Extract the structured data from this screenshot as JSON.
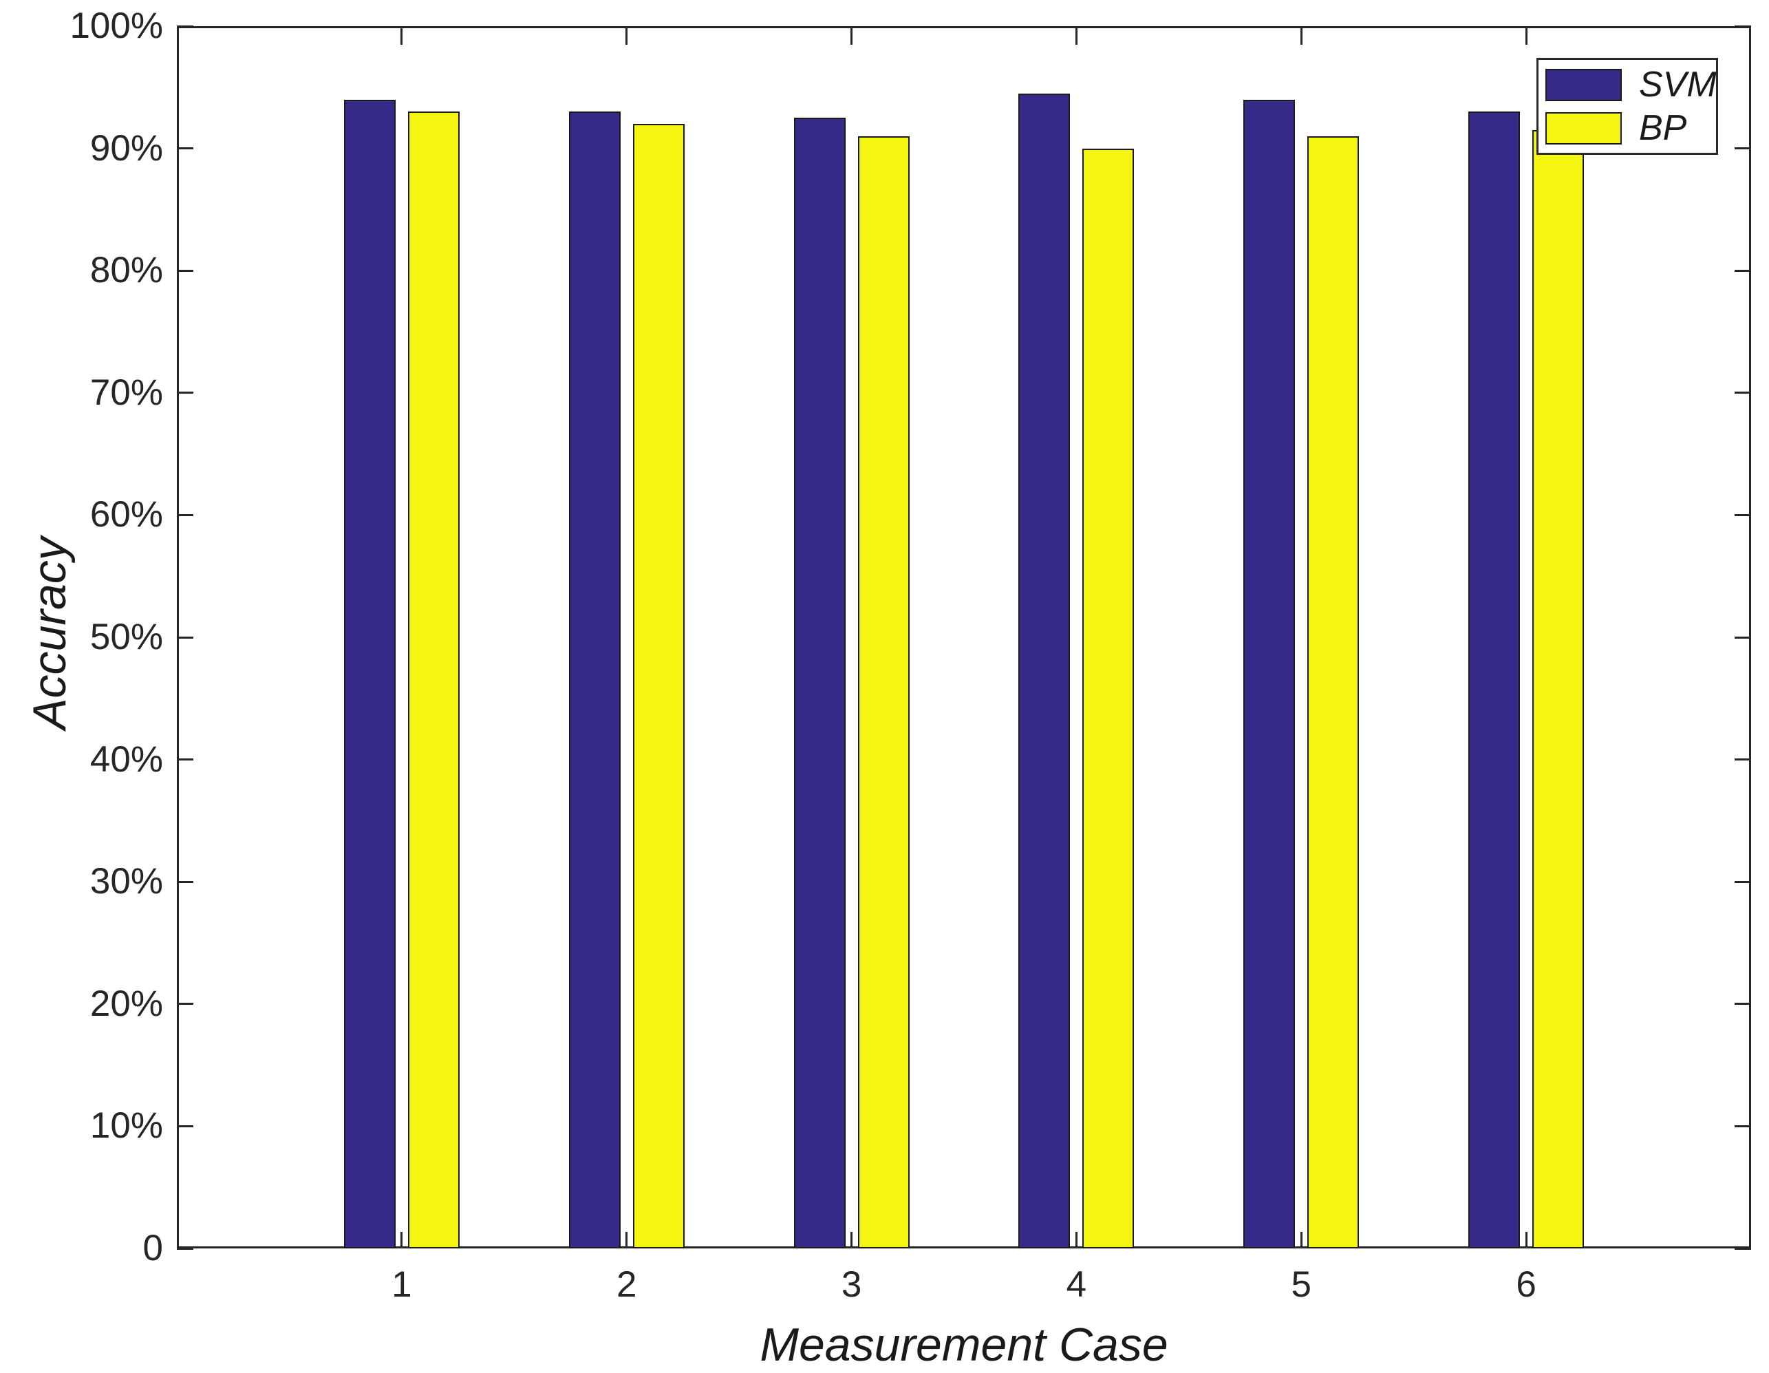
{
  "figure": {
    "background": "#ffffff",
    "axis_color": "#262626",
    "bar_edge_color": "#1a1a1a"
  },
  "chart_data": {
    "type": "bar",
    "title": "",
    "xlabel": "Measurement Case",
    "ylabel": "Accuracy",
    "categories": [
      "1",
      "2",
      "3",
      "4",
      "5",
      "6"
    ],
    "series": [
      {
        "name": "SVM",
        "color": "#352A87",
        "values": [
          94,
          93,
          92.5,
          94.5,
          94,
          93
        ]
      },
      {
        "name": "BP",
        "color": "#F4F511",
        "values": [
          93,
          92,
          91,
          90,
          91,
          91.5
        ]
      }
    ],
    "units": "percent",
    "ylim": [
      0,
      100
    ],
    "xlim": [
      0,
      7
    ],
    "y_ticks": [
      0,
      10,
      20,
      30,
      40,
      50,
      60,
      70,
      80,
      90,
      100
    ],
    "y_tick_labels": [
      "0",
      "10%",
      "20%",
      "30%",
      "40%",
      "50%",
      "60%",
      "70%",
      "80%",
      "90%",
      "100%"
    ],
    "grid": false,
    "legend": {
      "position": "top-right",
      "entries": [
        "SVM",
        "BP"
      ]
    }
  }
}
